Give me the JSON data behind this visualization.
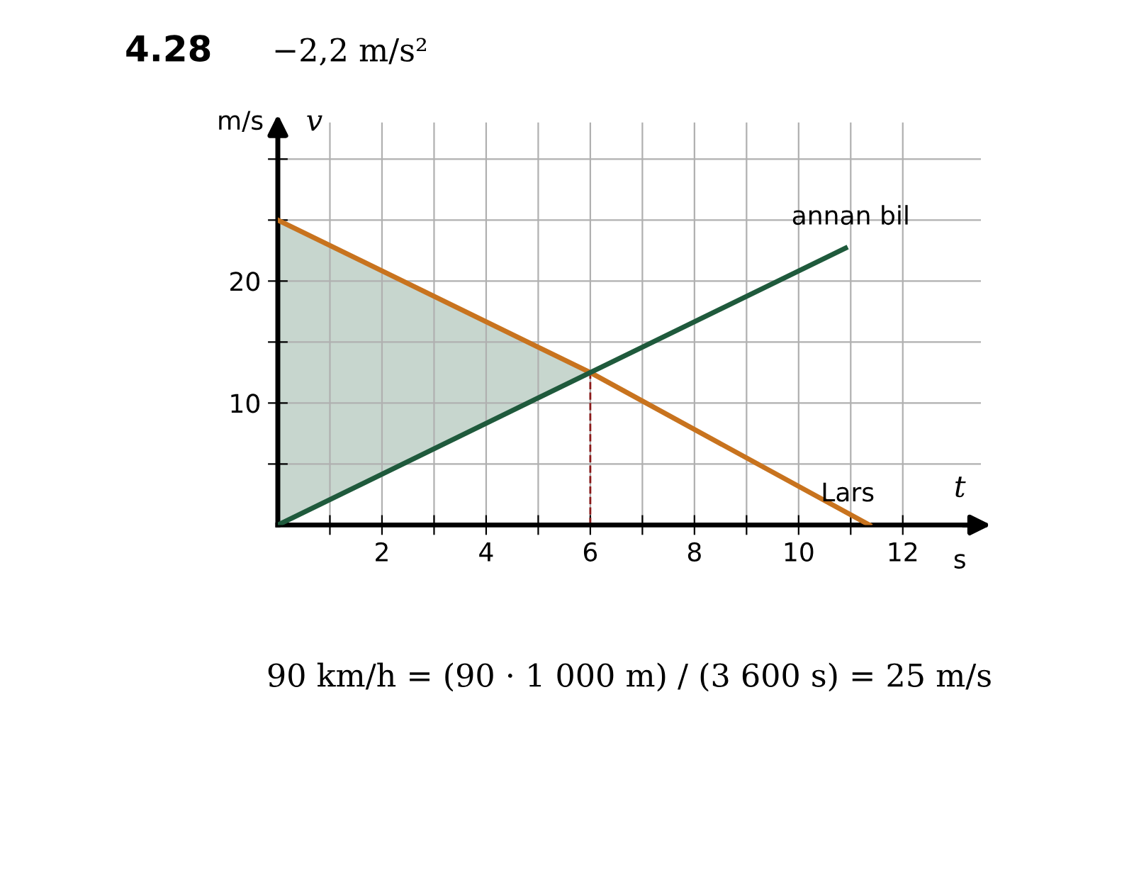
{
  "chart_data": {
    "type": "line",
    "title": "4.28",
    "subtitle": "−2,2 m/s²",
    "xlabel": "t",
    "ylabel": "v",
    "annotations": [
      "m/s",
      "s",
      "90 km/h = (90 · 1 000 m) / (3 600 s) = 25 m/s"
    ],
    "series": [
      {
        "name": "Lars",
        "color": "#c8731e",
        "x": [
          0,
          6,
          11.36
        ],
        "values": [
          25,
          12.5,
          0
        ]
      },
      {
        "name": "annan bil",
        "color": "#1f5a3c",
        "x": [
          0,
          6,
          10.9
        ],
        "values": [
          0,
          12.5,
          22.7
        ],
        "lower": [
          0,
          12.5,
          null
        ],
        "upper": [
          25,
          12.5,
          null
        ]
      }
    ],
    "ref_lines": [
      {
        "axis": "x",
        "value": 6,
        "color": "#8b1a1a",
        "line_style": "dashed"
      }
    ],
    "xlim": [
      0,
      13.5
    ],
    "ylim": [
      0,
      33
    ],
    "xticks": [
      {
        "value": 1,
        "label": null
      },
      2,
      {
        "value": 3,
        "label": null
      },
      4,
      {
        "value": 5,
        "label": null
      },
      6,
      {
        "value": 7,
        "label": null
      },
      8,
      {
        "value": 9,
        "label": null
      },
      10,
      {
        "value": 11,
        "label": null
      },
      12
    ],
    "yticks": [
      {
        "value": 5,
        "label": null
      },
      10,
      {
        "value": 15,
        "label": null
      },
      20,
      {
        "value": 25,
        "label": null
      },
      {
        "value": 30,
        "label": null
      }
    ],
    "grid": true,
    "marker": "none",
    "line_style": "solid"
  }
}
